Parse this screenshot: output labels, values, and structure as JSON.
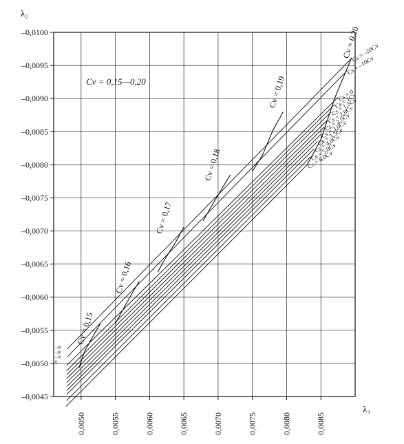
{
  "chart_data": {
    "type": "line",
    "ylabel": "λ₂",
    "xlabel": "λ₃",
    "annotation": "Cv = 0,15—0,20",
    "xlim": [
      0.0046,
      0.009
    ],
    "ylim": [
      -0.0045,
      -0.01
    ],
    "x_ticks": [
      {
        "v": 0.005,
        "label": "0,0050"
      },
      {
        "v": 0.0055,
        "label": "0,0055"
      },
      {
        "v": 0.006,
        "label": "0,0060"
      },
      {
        "v": 0.0065,
        "label": "0,0065"
      },
      {
        "v": 0.007,
        "label": "0,0070"
      },
      {
        "v": 0.0075,
        "label": "0,0075"
      },
      {
        "v": 0.008,
        "label": "0,0080"
      },
      {
        "v": 0.0085,
        "label": "0,0085"
      }
    ],
    "y_ticks": [
      {
        "v": -0.0045,
        "label": "–0,0045"
      },
      {
        "v": -0.005,
        "label": "–0,0050"
      },
      {
        "v": -0.0055,
        "label": "–0,0055"
      },
      {
        "v": -0.006,
        "label": "–0,0060"
      },
      {
        "v": -0.0065,
        "label": "–0,0065"
      },
      {
        "v": -0.007,
        "label": "–0,0070"
      },
      {
        "v": -0.0075,
        "label": "–0,0075"
      },
      {
        "v": -0.008,
        "label": "–0,0080"
      },
      {
        "v": -0.0085,
        "label": "–0,0085"
      },
      {
        "v": -0.009,
        "label": "–0,0090"
      },
      {
        "v": -0.0095,
        "label": "–0,0095"
      },
      {
        "v": -0.01,
        "label": "–0,0100"
      }
    ],
    "cs_lines": [
      {
        "label": "Cs = –20Cv",
        "x": [
          0.0048,
          0.00895
        ],
        "y": [
          -0.00522,
          -0.00961
        ]
      },
      {
        "label": "Cs = –10Cv",
        "x": [
          0.0048,
          0.00888
        ],
        "y": [
          -0.0051,
          -0.00942
        ]
      },
      {
        "label": "Cs = 0",
        "x": [
          0.00479,
          0.00875
        ],
        "y": [
          -0.00497,
          -0.00902
        ]
      },
      {
        "label": "Cs = 1Cv",
        "x": [
          0.00479,
          0.0087
        ],
        "y": [
          -0.00489,
          -0.00891
        ]
      },
      {
        "label": "Cs = 1,5Cv",
        "x": [
          0.00479,
          0.00865
        ],
        "y": [
          -0.00483,
          -0.0088
        ]
      },
      {
        "label": "Cs = 2,0Cv",
        "x": [
          0.00479,
          0.0086
        ],
        "y": [
          -0.00477,
          -0.00868
        ]
      },
      {
        "label": "Cs = 2,5Cv",
        "x": [
          0.00479,
          0.00855
        ],
        "y": [
          -0.00471,
          -0.00857
        ]
      },
      {
        "label": "Cs = 3,0Cv",
        "x": [
          0.00479,
          0.0085
        ],
        "y": [
          -0.00465,
          -0.00846
        ]
      },
      {
        "label": "Cs = 3,5Cv",
        "x": [
          0.00479,
          0.00845
        ],
        "y": [
          -0.00459,
          -0.00835
        ]
      },
      {
        "label": "Cs = 4,0Cv",
        "x": [
          0.00479,
          0.0084
        ],
        "y": [
          -0.00453,
          -0.00824
        ]
      },
      {
        "label": "Cs = 5,0Cv",
        "x": [
          0.00479,
          0.00835
        ],
        "y": [
          -0.00444,
          -0.00812
        ]
      },
      {
        "label": "Cs = 6,0Cv",
        "x": [
          0.00478,
          0.0083
        ],
        "y": [
          -0.00435,
          -0.008
        ]
      }
    ],
    "cv_curves": [
      {
        "label": "Cv = 0,15",
        "x": [
          0.00497,
          0.00505,
          0.00518,
          0.00528
        ],
        "y": [
          -0.00493,
          -0.00518,
          -0.00542,
          -0.0056
        ]
      },
      {
        "label": "Cv = 0,16",
        "x": [
          0.0055,
          0.00562,
          0.00575,
          0.00585
        ],
        "y": [
          -0.0056,
          -0.00583,
          -0.00607,
          -0.00624
        ]
      },
      {
        "label": "Cv = 0,17",
        "x": [
          0.00612,
          0.00622,
          0.00638,
          0.0065
        ],
        "y": [
          -0.00638,
          -0.00657,
          -0.00683,
          -0.00706
        ]
      },
      {
        "label": "Cv = 0,18",
        "x": [
          0.00678,
          0.0069,
          0.00705,
          0.00718
        ],
        "y": [
          -0.00715,
          -0.00737,
          -0.00763,
          -0.00785
        ]
      },
      {
        "label": "Cv = 0,19",
        "x": [
          0.0075,
          0.00765,
          0.0078,
          0.00795
        ],
        "y": [
          -0.0079,
          -0.00815,
          -0.00852,
          -0.0088
        ]
      },
      {
        "label": "Cv = 0,20",
        "x": [
          0.0083,
          0.0085,
          0.0087,
          0.00895
        ],
        "y": [
          -0.008,
          -0.00838,
          -0.009,
          -0.00962
        ]
      }
    ],
    "cv_label_points": [
      {
        "label": "Cv = 0,15",
        "x": 0.00502,
        "y": -0.00528
      },
      {
        "label": "Cv = 0,16",
        "x": 0.00558,
        "y": -0.00605
      },
      {
        "label": "Cv = 0,17",
        "x": 0.00617,
        "y": -0.00695
      },
      {
        "label": "Cv = 0,18",
        "x": 0.00688,
        "y": -0.00775
      },
      {
        "label": "Cv = 0,19",
        "x": 0.00782,
        "y": -0.00885
      },
      {
        "label": "Cv = 0,20",
        "x": 0.0089,
        "y": -0.0096
      }
    ],
    "left_markers": [
      "–30",
      "–20",
      "–10",
      "0"
    ],
    "grid": true
  }
}
